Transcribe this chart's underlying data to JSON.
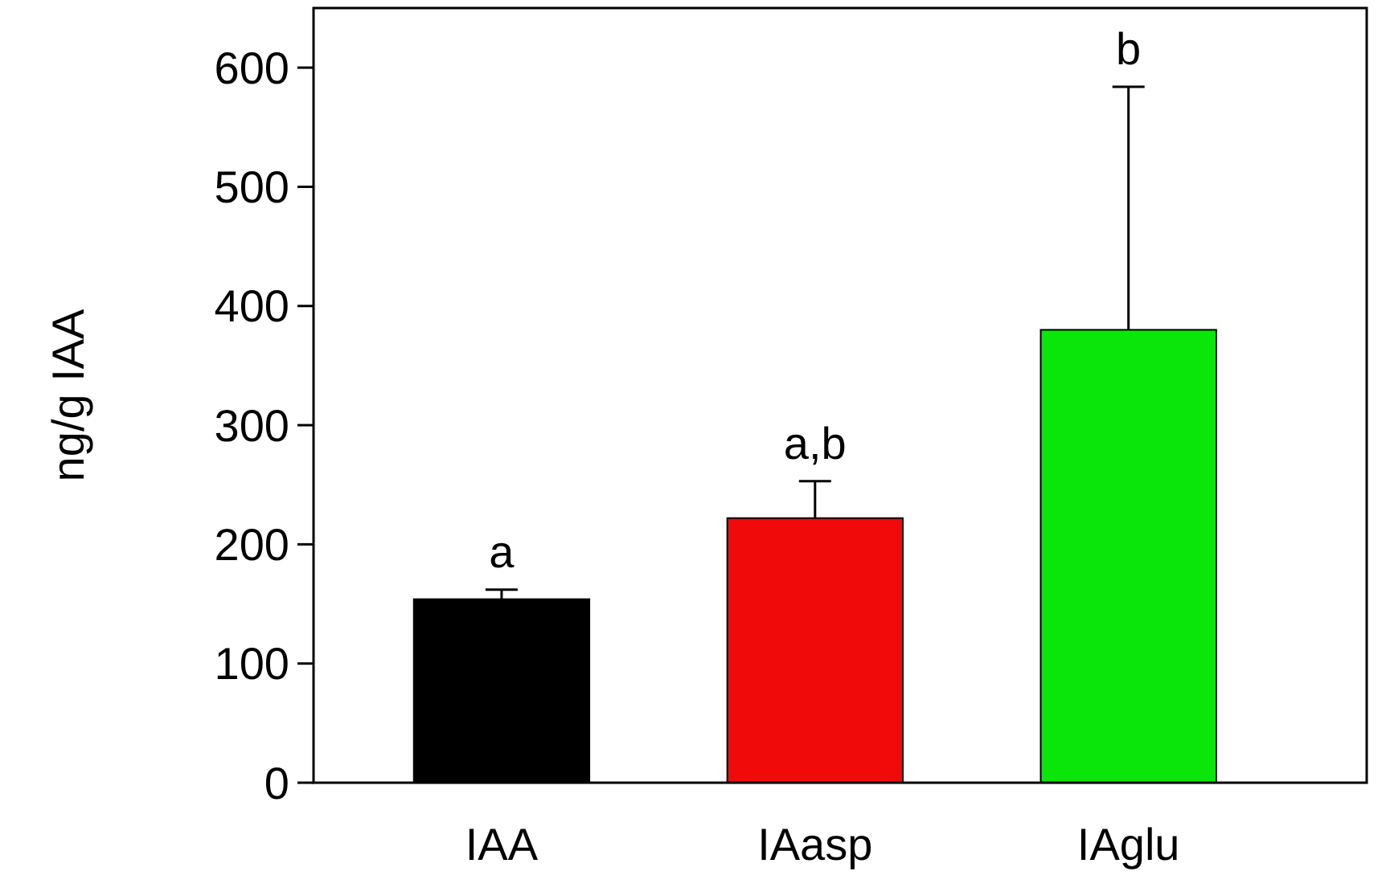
{
  "chart_data": {
    "type": "bar",
    "ylabel": "ng/g IAA",
    "categories": [
      "IAA",
      "IAasp",
      "IAglu"
    ],
    "values": [
      154,
      222,
      380
    ],
    "colors": [
      "#000000",
      "#f00a0a",
      "#0ae60a"
    ],
    "errors": [
      8,
      31,
      204
    ],
    "ylim": [
      0,
      650
    ],
    "yticks": [
      0,
      100,
      200,
      300,
      400,
      500,
      600
    ],
    "grid": false,
    "annotations": [
      {
        "text": "a",
        "x": "IAA",
        "y": 162
      },
      {
        "text": "a,b",
        "x": "IAasp",
        "y": 253
      },
      {
        "text": "b",
        "x": "IAglu",
        "y": 584
      }
    ]
  }
}
